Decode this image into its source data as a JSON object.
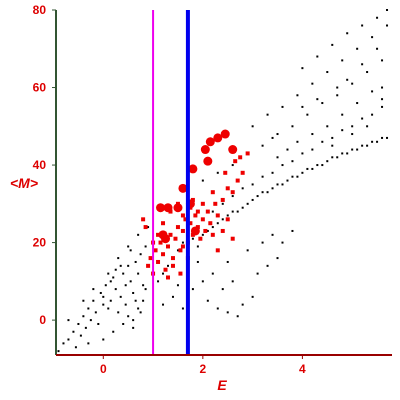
{
  "chart_data": {
    "type": "scatter",
    "title": "",
    "xlabel": "E",
    "ylabel": "<M>",
    "xlim": [
      -0.95,
      5.8
    ],
    "ylim": [
      -9,
      80
    ],
    "x_ticks": [
      0,
      2,
      4
    ],
    "y_ticks": [
      0,
      20,
      40,
      60,
      80
    ],
    "grid": false,
    "legend": "none",
    "colors": {
      "text": "#dd0000",
      "axis_left": "#335533",
      "axis_bottom": "#990000",
      "points_black": "#000000",
      "points_red": "#ee0000",
      "vline_magenta": "#ee00ee",
      "vline_blue": "#0000ee"
    },
    "vertical_lines": [
      {
        "x": 1.0,
        "color": "#ee00ee",
        "style": "thin"
      },
      {
        "x": 1.7,
        "color": "#0000ee",
        "style": "thick"
      }
    ],
    "series": [
      {
        "color": "#000000",
        "marker": "dot",
        "points": [
          [
            -0.9,
            -8
          ],
          [
            -0.8,
            -6
          ],
          [
            -0.7,
            -5
          ],
          [
            -0.6,
            -3
          ],
          [
            -0.55,
            -7
          ],
          [
            -0.5,
            -1
          ],
          [
            -0.45,
            -4
          ],
          [
            -0.4,
            1
          ],
          [
            -0.35,
            -2
          ],
          [
            -0.3,
            3
          ],
          [
            -0.25,
            0
          ],
          [
            -0.2,
            5
          ],
          [
            -0.15,
            2
          ],
          [
            -0.1,
            -1
          ],
          [
            -0.05,
            7
          ],
          [
            0.0,
            4
          ],
          [
            0.0,
            6
          ],
          [
            0.05,
            9
          ],
          [
            0.1,
            3
          ],
          [
            0.15,
            5
          ],
          [
            0.2,
            11
          ],
          [
            0.25,
            8
          ],
          [
            0.3,
            2
          ],
          [
            0.35,
            6
          ],
          [
            0.4,
            12
          ],
          [
            0.45,
            9
          ],
          [
            0.5,
            14
          ],
          [
            0.55,
            10
          ],
          [
            0.6,
            7
          ],
          [
            0.65,
            15
          ],
          [
            0.7,
            12
          ],
          [
            0.75,
            17
          ],
          [
            0.8,
            9
          ],
          [
            0.85,
            19
          ],
          [
            0.9,
            14
          ],
          [
            0.4,
            -1
          ],
          [
            0.5,
            1
          ],
          [
            0.6,
            0
          ],
          [
            0.7,
            3
          ],
          [
            0.8,
            5
          ],
          [
            -0.4,
            5
          ],
          [
            -0.2,
            8
          ],
          [
            0.1,
            12
          ],
          [
            0.3,
            16
          ],
          [
            0.5,
            19
          ],
          [
            0.7,
            22
          ],
          [
            0.9,
            24
          ],
          [
            0.2,
            -3
          ],
          [
            0.0,
            -5
          ],
          [
            0.6,
            -2
          ],
          [
            -0.7,
            0
          ],
          [
            -0.3,
            -6
          ],
          [
            0.35,
            14
          ],
          [
            0.15,
            10
          ],
          [
            0.25,
            13
          ],
          [
            0.55,
            18
          ],
          [
            0.65,
            5
          ],
          [
            0.45,
            4
          ],
          [
            0.75,
            2
          ],
          [
            0.85,
            8
          ],
          [
            1.1,
            10
          ],
          [
            1.2,
            12
          ],
          [
            1.3,
            14
          ],
          [
            1.4,
            16
          ],
          [
            1.5,
            18
          ],
          [
            1.6,
            20
          ],
          [
            1.8,
            21
          ],
          [
            1.9,
            19
          ],
          [
            2.0,
            22
          ],
          [
            2.1,
            23
          ],
          [
            2.2,
            24
          ],
          [
            2.3,
            25
          ],
          [
            2.4,
            26
          ],
          [
            2.5,
            27
          ],
          [
            2.6,
            28
          ],
          [
            2.7,
            28
          ],
          [
            2.8,
            29
          ],
          [
            2.9,
            30
          ],
          [
            3.0,
            31
          ],
          [
            3.1,
            32
          ],
          [
            3.2,
            33
          ],
          [
            3.3,
            33
          ],
          [
            3.4,
            34
          ],
          [
            3.5,
            35
          ],
          [
            3.6,
            35
          ],
          [
            3.7,
            36
          ],
          [
            3.8,
            37
          ],
          [
            3.9,
            37
          ],
          [
            4.0,
            38
          ],
          [
            4.1,
            39
          ],
          [
            4.2,
            39
          ],
          [
            4.3,
            40
          ],
          [
            4.4,
            40
          ],
          [
            4.5,
            41
          ],
          [
            4.6,
            42
          ],
          [
            4.7,
            42
          ],
          [
            4.8,
            43
          ],
          [
            4.9,
            43
          ],
          [
            5.0,
            44
          ],
          [
            5.1,
            44
          ],
          [
            5.2,
            45
          ],
          [
            5.3,
            45
          ],
          [
            5.4,
            46
          ],
          [
            5.5,
            46
          ],
          [
            5.6,
            47
          ],
          [
            5.7,
            47
          ],
          [
            2.2,
            28
          ],
          [
            2.4,
            30
          ],
          [
            2.6,
            32
          ],
          [
            2.8,
            34
          ],
          [
            3.0,
            35
          ],
          [
            3.2,
            37
          ],
          [
            3.4,
            38
          ],
          [
            3.6,
            40
          ],
          [
            3.8,
            41
          ],
          [
            4.0,
            43
          ],
          [
            4.2,
            44
          ],
          [
            4.4,
            46
          ],
          [
            4.6,
            47
          ],
          [
            4.8,
            49
          ],
          [
            5.0,
            50
          ],
          [
            5.2,
            52
          ],
          [
            5.4,
            53
          ],
          [
            5.6,
            55
          ],
          [
            2.0,
            36
          ],
          [
            2.3,
            38
          ],
          [
            2.6,
            40
          ],
          [
            2.9,
            43
          ],
          [
            3.2,
            45
          ],
          [
            3.5,
            48
          ],
          [
            3.8,
            50
          ],
          [
            4.1,
            53
          ],
          [
            4.4,
            56
          ],
          [
            4.7,
            58
          ],
          [
            5.0,
            61
          ],
          [
            5.3,
            64
          ],
          [
            5.6,
            67
          ],
          [
            3.0,
            50
          ],
          [
            3.3,
            53
          ],
          [
            3.6,
            55
          ],
          [
            3.9,
            58
          ],
          [
            4.2,
            61
          ],
          [
            4.5,
            64
          ],
          [
            4.8,
            67
          ],
          [
            5.1,
            70
          ],
          [
            5.4,
            73
          ],
          [
            5.7,
            76
          ],
          [
            4.0,
            65
          ],
          [
            4.3,
            68
          ],
          [
            4.6,
            71
          ],
          [
            4.9,
            74
          ],
          [
            5.2,
            76
          ],
          [
            5.5,
            78
          ],
          [
            5.7,
            80
          ],
          [
            4.5,
            50
          ],
          [
            4.8,
            53
          ],
          [
            5.1,
            56
          ],
          [
            5.4,
            59
          ],
          [
            4.2,
            48
          ],
          [
            4.6,
            45
          ],
          [
            5.0,
            48
          ],
          [
            5.3,
            50
          ],
          [
            5.6,
            57
          ],
          [
            4.0,
            55
          ],
          [
            3.5,
            42
          ],
          [
            3.7,
            44
          ],
          [
            4.3,
            57
          ],
          [
            4.9,
            62
          ],
          [
            5.5,
            70
          ],
          [
            5.2,
            66
          ],
          [
            4.7,
            60
          ],
          [
            3.4,
            47
          ],
          [
            3.9,
            46
          ],
          [
            5.6,
            60
          ],
          [
            2.1,
            5
          ],
          [
            2.3,
            3
          ],
          [
            2.5,
            2
          ],
          [
            2.7,
            1
          ],
          [
            2.4,
            8
          ],
          [
            2.8,
            4
          ],
          [
            3.0,
            6
          ],
          [
            2.2,
            12
          ],
          [
            2.6,
            10
          ],
          [
            3.1,
            12
          ],
          [
            3.3,
            14
          ],
          [
            3.5,
            16
          ],
          [
            2.9,
            18
          ],
          [
            3.2,
            20
          ],
          [
            3.4,
            22
          ],
          [
            1.9,
            15
          ],
          [
            2.0,
            10
          ],
          [
            2.5,
            15
          ],
          [
            3.6,
            20
          ],
          [
            3.8,
            23
          ],
          [
            1.4,
            6
          ],
          [
            1.6,
            3
          ],
          [
            1.8,
            8
          ],
          [
            1.2,
            4
          ],
          [
            1.5,
            9
          ],
          [
            1.7,
            12
          ]
        ]
      },
      {
        "color": "#ee0000",
        "marker": "square",
        "points": [
          [
            0.9,
            14
          ],
          [
            0.95,
            16
          ],
          [
            1.0,
            12
          ],
          [
            1.05,
            18
          ],
          [
            1.1,
            15
          ],
          [
            1.15,
            20
          ],
          [
            1.2,
            17
          ],
          [
            1.25,
            13
          ],
          [
            1.3,
            19
          ],
          [
            1.35,
            22
          ],
          [
            1.4,
            16
          ],
          [
            1.45,
            21
          ],
          [
            1.5,
            24
          ],
          [
            1.55,
            18
          ],
          [
            1.6,
            23
          ],
          [
            1.65,
            26
          ],
          [
            1.7,
            20
          ],
          [
            1.75,
            25
          ],
          [
            1.8,
            22
          ],
          [
            1.85,
            27
          ],
          [
            1.9,
            24
          ],
          [
            1.95,
            21
          ],
          [
            2.0,
            26
          ],
          [
            2.05,
            23
          ],
          [
            2.1,
            28
          ],
          [
            2.15,
            25
          ],
          [
            2.2,
            22
          ],
          [
            2.25,
            30
          ],
          [
            2.3,
            27
          ],
          [
            2.4,
            31
          ],
          [
            2.5,
            34
          ],
          [
            2.6,
            33
          ],
          [
            2.7,
            36
          ],
          [
            2.8,
            38
          ],
          [
            2.0,
            30
          ],
          [
            2.2,
            33
          ],
          [
            1.8,
            31
          ],
          [
            1.9,
            28
          ],
          [
            1.6,
            27
          ],
          [
            1.5,
            30
          ],
          [
            1.2,
            25
          ],
          [
            1.1,
            22
          ],
          [
            1.0,
            20
          ],
          [
            0.85,
            24
          ],
          [
            0.8,
            26
          ],
          [
            1.3,
            11
          ],
          [
            1.4,
            14
          ],
          [
            1.55,
            12
          ],
          [
            1.7,
            16
          ],
          [
            1.6,
            19
          ],
          [
            2.3,
            18
          ],
          [
            2.4,
            23
          ],
          [
            2.6,
            21
          ],
          [
            2.5,
            26
          ],
          [
            1.75,
            29
          ],
          [
            2.45,
            38
          ],
          [
            2.65,
            41
          ],
          [
            2.75,
            42
          ],
          [
            2.9,
            43
          ],
          [
            1.35,
            28
          ]
        ]
      },
      {
        "color": "#ee0000",
        "marker": "large-dot",
        "points": [
          [
            1.15,
            29
          ],
          [
            1.3,
            29
          ],
          [
            1.5,
            29
          ],
          [
            1.2,
            22
          ],
          [
            1.25,
            21
          ],
          [
            1.6,
            34
          ],
          [
            1.8,
            39
          ],
          [
            1.75,
            30
          ],
          [
            2.05,
            44
          ],
          [
            2.15,
            46
          ],
          [
            2.3,
            47
          ],
          [
            2.45,
            48
          ],
          [
            2.6,
            44
          ],
          [
            1.85,
            23
          ],
          [
            2.1,
            41
          ]
        ]
      }
    ]
  }
}
